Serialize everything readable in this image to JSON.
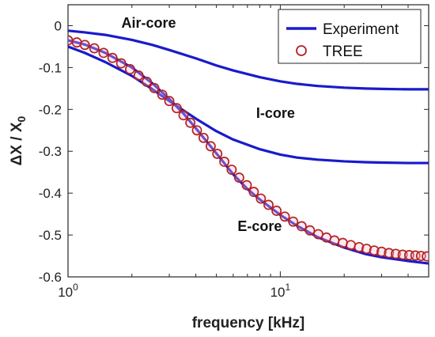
{
  "chart_data": {
    "type": "line",
    "xlabel": "frequency [kHz]",
    "ylabel": "ΔX / X",
    "ylabel_sub": "0",
    "x_scale": "log",
    "xlim": [
      1,
      50
    ],
    "ylim": [
      -0.6,
      0.05
    ],
    "x_ticks": [
      1,
      10
    ],
    "x_tick_labels": [
      {
        "base": "10",
        "exp": "0"
      },
      {
        "base": "10",
        "exp": "1"
      }
    ],
    "y_ticks": [
      0,
      -0.1,
      -0.2,
      -0.3,
      -0.4,
      -0.5,
      -0.6
    ],
    "y_tick_labels": [
      "0",
      "-0.1",
      "-0.2",
      "-0.3",
      "-0.4",
      "-0.5",
      "-0.6"
    ],
    "grid": false,
    "legend_position": "top-right",
    "legend": [
      {
        "label": "Experiment",
        "marker": "line",
        "color": "#1a1acc"
      },
      {
        "label": "TREE",
        "marker": "circle",
        "color": "#b22222"
      }
    ],
    "annotations": [
      {
        "text": "Air-core",
        "x": 2.4,
        "y": -0.005
      },
      {
        "text": "I-core",
        "x": 9.5,
        "y": -0.22
      },
      {
        "text": "E-core",
        "x": 8.0,
        "y": -0.49
      }
    ],
    "series": [
      {
        "kind": "experiment",
        "x": [
          1,
          1.2,
          1.5,
          2,
          2.5,
          3,
          4,
          5,
          6,
          8,
          10,
          12,
          15,
          20,
          25,
          30,
          40,
          50
        ],
        "y": [
          -0.012,
          -0.016,
          -0.022,
          -0.034,
          -0.046,
          -0.058,
          -0.078,
          -0.095,
          -0.107,
          -0.123,
          -0.133,
          -0.139,
          -0.144,
          -0.148,
          -0.15,
          -0.151,
          -0.152,
          -0.152
        ]
      },
      {
        "kind": "experiment",
        "x": [
          1,
          1.2,
          1.5,
          2,
          2.5,
          3,
          4,
          5,
          6,
          8,
          10,
          12,
          15,
          20,
          25,
          30,
          40,
          50
        ],
        "y": [
          -0.05,
          -0.065,
          -0.087,
          -0.12,
          -0.152,
          -0.18,
          -0.222,
          -0.252,
          -0.272,
          -0.295,
          -0.308,
          -0.315,
          -0.32,
          -0.324,
          -0.326,
          -0.327,
          -0.328,
          -0.328
        ]
      },
      {
        "kind": "experiment",
        "x": [
          1,
          1.2,
          1.5,
          2,
          2.5,
          3,
          3.5,
          4,
          5,
          6,
          7,
          8,
          10,
          12,
          15,
          20,
          25,
          30,
          40,
          50
        ],
        "y": [
          -0.035,
          -0.045,
          -0.065,
          -0.1,
          -0.138,
          -0.175,
          -0.21,
          -0.245,
          -0.305,
          -0.355,
          -0.39,
          -0.415,
          -0.452,
          -0.478,
          -0.505,
          -0.53,
          -0.545,
          -0.553,
          -0.562,
          -0.568
        ]
      },
      {
        "kind": "tree",
        "x": [
          1.0,
          1.1,
          1.2,
          1.33,
          1.47,
          1.62,
          1.78,
          1.96,
          2.15,
          2.35,
          2.55,
          2.78,
          3.0,
          3.25,
          3.5,
          3.77,
          4.05,
          4.35,
          4.7,
          5.05,
          5.45,
          5.9,
          6.4,
          6.95,
          7.5,
          8.1,
          8.8,
          9.6,
          10.5,
          11.5,
          12.6,
          13.8,
          15.1,
          16.5,
          18.0,
          19.7,
          21.5,
          23.5,
          25.5,
          27.7,
          30.0,
          32.5,
          35.0,
          37.7,
          40.5,
          43.3,
          46.0,
          49.0
        ],
        "y": [
          -0.035,
          -0.04,
          -0.046,
          -0.054,
          -0.065,
          -0.077,
          -0.09,
          -0.104,
          -0.119,
          -0.134,
          -0.149,
          -0.165,
          -0.18,
          -0.197,
          -0.214,
          -0.232,
          -0.25,
          -0.268,
          -0.288,
          -0.306,
          -0.325,
          -0.344,
          -0.363,
          -0.381,
          -0.397,
          -0.413,
          -0.428,
          -0.442,
          -0.456,
          -0.468,
          -0.479,
          -0.489,
          -0.498,
          -0.506,
          -0.513,
          -0.519,
          -0.524,
          -0.529,
          -0.533,
          -0.537,
          -0.54,
          -0.543,
          -0.545,
          -0.547,
          -0.548,
          -0.549,
          -0.55,
          -0.551
        ]
      }
    ]
  }
}
